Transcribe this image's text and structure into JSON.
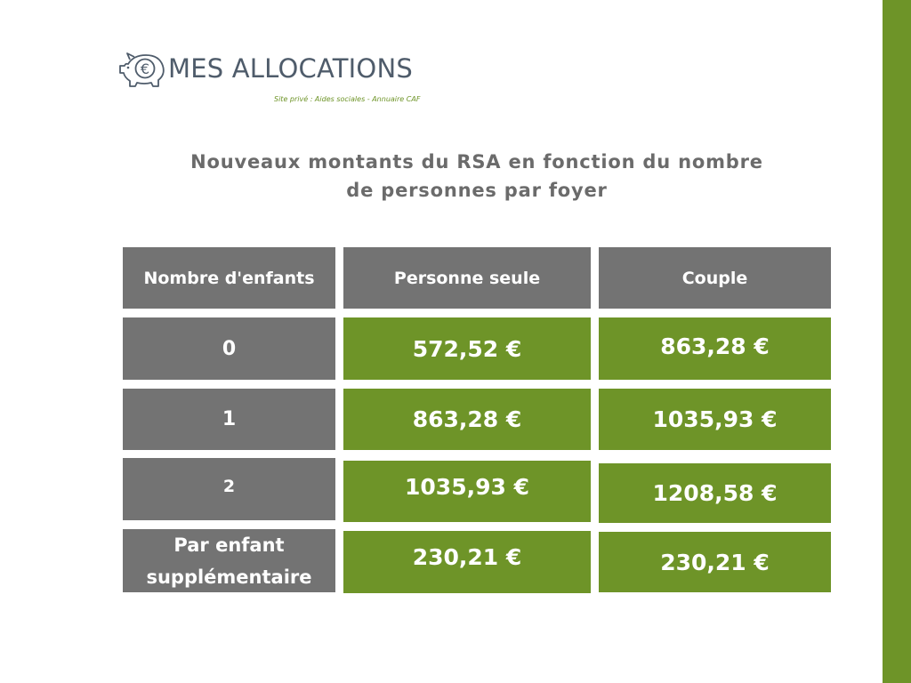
{
  "brand": {
    "name": "MES ALLOCATIONS",
    "tagline": "Site privé : Aides sociales - Annuaire CAF",
    "logo_icon": "piggy-bank-euro-icon",
    "logo_symbol": "€"
  },
  "heading": {
    "line1": "Nouveaux montants du RSA en fonction du nombre",
    "line2": "de personnes par foyer"
  },
  "table": {
    "headers": {
      "children": "Nombre d'enfants",
      "single": "Personne seule",
      "couple": "Couple"
    },
    "rows": [
      {
        "children": "0",
        "single": "572,52 €",
        "couple": "863,28 €"
      },
      {
        "children": "1",
        "single": "863,28 €",
        "couple": "1035,93 €"
      },
      {
        "children": "2",
        "single": "1035,93 €",
        "couple": "1208,58 €"
      },
      {
        "children_line1": "Par enfant",
        "children_line2": "supplémentaire",
        "single": "230,21 €",
        "couple": "230,21 €"
      }
    ]
  },
  "colors": {
    "accent_green": "#6e9428",
    "cell_gray": "#737373",
    "heading_gray": "#6b6b6b",
    "brand_text": "#4f5c6b"
  }
}
